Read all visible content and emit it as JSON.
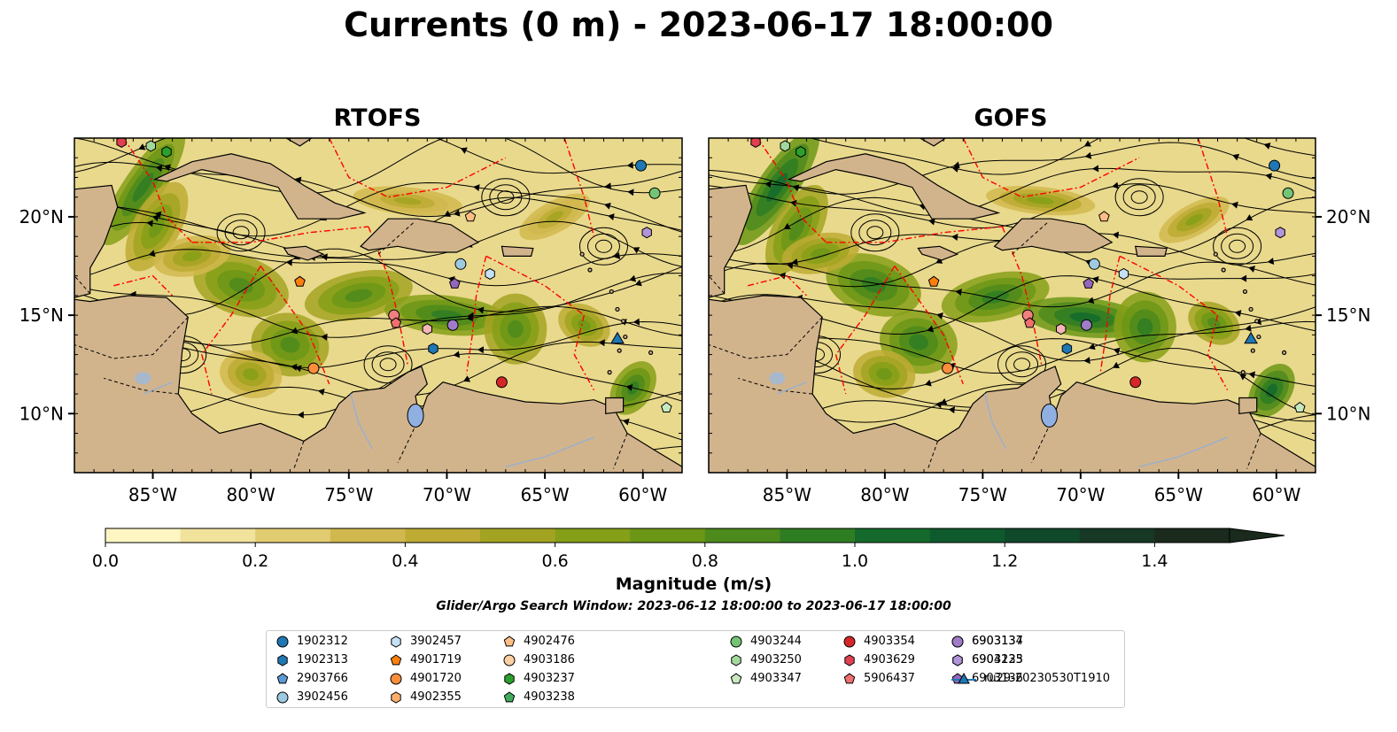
{
  "title": "Currents (0 m) - 2023-06-17 18:00:00",
  "panels": [
    {
      "title": "RTOFS"
    },
    {
      "title": "GOFS"
    }
  ],
  "map": {
    "lon_range": [
      -89,
      -58
    ],
    "lat_range": [
      7,
      24
    ],
    "lon_ticks": [
      "85°W",
      "80°W",
      "75°W",
      "70°W",
      "65°W",
      "60°W"
    ],
    "lat_ticks": [
      "10°N",
      "15°N",
      "20°N"
    ],
    "land_color": "#d2b48c",
    "front_color": "#ff0000",
    "lake_color": "#8fb0e0"
  },
  "colorbar": {
    "label": "Magnitude (m/s)",
    "min": 0.0,
    "max": 1.5,
    "extend": "max",
    "ticks": [
      "0.0",
      "0.2",
      "0.4",
      "0.6",
      "0.8",
      "1.0",
      "1.2",
      "1.4"
    ],
    "colors": [
      "#fdf6c2",
      "#f1e29c",
      "#e2cc72",
      "#d1b84e",
      "#bdab34",
      "#a3a322",
      "#869f18",
      "#6c9616",
      "#4d8a1c",
      "#2f7d22",
      "#146a2c",
      "#0e5a2c",
      "#10482a",
      "#163824",
      "#1a2a1c"
    ]
  },
  "search_window": "Glider/Argo Search Window: 2023-06-12 18:00:00 to 2023-06-17 18:00:00",
  "legend": [
    {
      "label": "1902312",
      "color": "#1f77b4",
      "marker": "circle"
    },
    {
      "label": "1902313",
      "color": "#1f77b4",
      "marker": "hexagon"
    },
    {
      "label": "2903766",
      "color": "#5b9bd5",
      "marker": "pentagon"
    },
    {
      "label": "3902456",
      "color": "#9ecae1",
      "marker": "circle"
    },
    {
      "label": "3902457",
      "color": "#c6e1f5",
      "marker": "hexagon"
    },
    {
      "label": "4901719",
      "color": "#ff7f0e",
      "marker": "pentagon"
    },
    {
      "label": "4901720",
      "color": "#fd8d3c",
      "marker": "circle"
    },
    {
      "label": "4902355",
      "color": "#fdae6b",
      "marker": "hexagon"
    },
    {
      "label": "4902476",
      "color": "#fdbe85",
      "marker": "pentagon"
    },
    {
      "label": "4903186",
      "color": "#fdd0a2",
      "marker": "circle"
    },
    {
      "label": "4903237",
      "color": "#2ca02c",
      "marker": "hexagon"
    },
    {
      "label": "4903238",
      "color": "#41ab5d",
      "marker": "pentagon"
    },
    {
      "label": "4903244",
      "color": "#74c476",
      "marker": "circle"
    },
    {
      "label": "4903250",
      "color": "#a1d99b",
      "marker": "hexagon"
    },
    {
      "label": "4903347",
      "color": "#c7e9c0",
      "marker": "pentagon"
    },
    {
      "label": "4903354",
      "color": "#d62728",
      "marker": "circle"
    },
    {
      "label": "4903629",
      "color": "#e04050",
      "marker": "hexagon"
    },
    {
      "label": "5906437",
      "color": "#ef6f6f",
      "marker": "pentagon"
    },
    {
      "label": "6903134",
      "color": "#f08080",
      "marker": "circle"
    },
    {
      "label": "6903135",
      "color": "#f4b6b6",
      "marker": "hexagon"
    },
    {
      "label": "6903136",
      "color": "#9467bd",
      "marker": "pentagon"
    },
    {
      "label": "6903137",
      "color": "#a07cc8",
      "marker": "circle"
    },
    {
      "label": "6904223",
      "color": "#b294d8",
      "marker": "hexagon"
    },
    {
      "label": "ru29-20230530T1910",
      "color": "#1f77b4",
      "marker": "triangle-line"
    }
  ],
  "floats": [
    {
      "id": "1902312",
      "lon": -60.1,
      "lat": 22.6
    },
    {
      "id": "4903244",
      "lon": -59.4,
      "lat": 21.2
    },
    {
      "id": "4902476",
      "lon": -68.8,
      "lat": 20.0
    },
    {
      "id": "6904223",
      "lon": -59.8,
      "lat": 19.2
    },
    {
      "id": "3902456",
      "lon": -69.3,
      "lat": 17.6
    },
    {
      "id": "3902457",
      "lon": -67.8,
      "lat": 17.1
    },
    {
      "id": "4901719",
      "lon": -77.5,
      "lat": 16.7
    },
    {
      "id": "6903136",
      "lon": -69.6,
      "lat": 16.6
    },
    {
      "id": "6903134",
      "lon": -72.7,
      "lat": 15.0
    },
    {
      "id": "5906437",
      "lon": -72.6,
      "lat": 14.6
    },
    {
      "id": "6903135",
      "lon": -71.0,
      "lat": 14.3
    },
    {
      "id": "6903137",
      "lon": -69.7,
      "lat": 14.5
    },
    {
      "id": "1902313",
      "lon": -70.7,
      "lat": 13.3
    },
    {
      "id": "ru29-20230530T1910",
      "lon": -61.3,
      "lat": 13.8
    },
    {
      "id": "4901720",
      "lon": -76.8,
      "lat": 12.3
    },
    {
      "id": "4903354",
      "lon": -67.2,
      "lat": 11.6
    },
    {
      "id": "4903347",
      "lon": -58.8,
      "lat": 10.3
    },
    {
      "id": "4903250",
      "lon": -85.1,
      "lat": 23.6
    },
    {
      "id": "4903237",
      "lon": -84.3,
      "lat": 23.3
    },
    {
      "id": "4903629",
      "lon": -86.6,
      "lat": 23.8
    }
  ]
}
